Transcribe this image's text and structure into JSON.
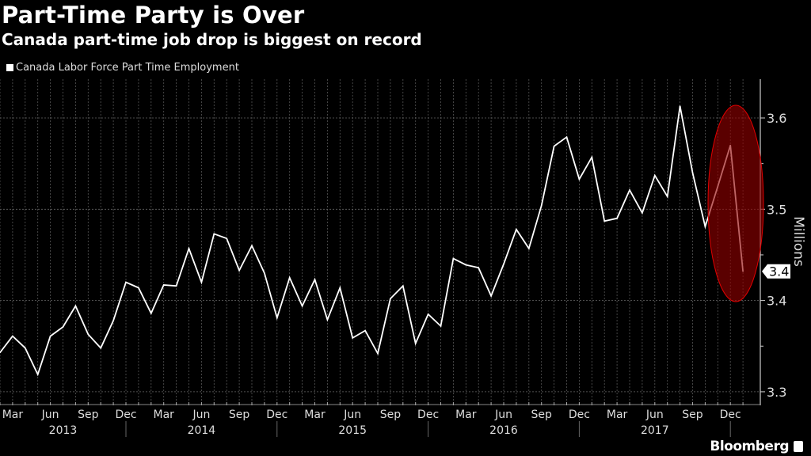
{
  "chart_data": {
    "type": "line",
    "title": "Part-Time Party is Over",
    "subtitle": "Canada part-time job drop is biggest on record",
    "ylabel": "Millions",
    "ylim": [
      3.3,
      3.62
    ],
    "yticks": [
      "3.3",
      "3.4",
      "3.5",
      "3.6"
    ],
    "grid": true,
    "legend_position": "top-left",
    "x_start": "2013-02",
    "x_end": "2018-01",
    "month_tick_labels": [
      "Mar",
      "Jun",
      "Sep",
      "Dec",
      "Mar",
      "Jun",
      "Sep",
      "Dec",
      "Mar",
      "Jun",
      "Sep",
      "Dec",
      "Mar",
      "Jun",
      "Sep",
      "Dec",
      "Mar",
      "Jun",
      "Sep",
      "Dec"
    ],
    "year_labels": [
      "2013",
      "2014",
      "2015",
      "2016",
      "2017"
    ],
    "series": [
      {
        "name": "Canada Labor Force Part Time Employment",
        "color": "#ffffff",
        "values": [
          3.343,
          3.361,
          3.348,
          3.319,
          3.361,
          3.371,
          3.394,
          3.363,
          3.348,
          3.378,
          3.42,
          3.414,
          3.386,
          3.417,
          3.416,
          3.457,
          3.42,
          3.473,
          3.468,
          3.433,
          3.46,
          3.43,
          3.381,
          3.425,
          3.394,
          3.423,
          3.379,
          3.414,
          3.359,
          3.367,
          3.342,
          3.402,
          3.416,
          3.353,
          3.385,
          3.372,
          3.446,
          3.439,
          3.436,
          3.405,
          3.44,
          3.478,
          3.457,
          3.504,
          3.569,
          3.579,
          3.533,
          3.557,
          3.487,
          3.49,
          3.521,
          3.496,
          3.537,
          3.514,
          3.613,
          3.54,
          3.481,
          3.525,
          3.57,
          3.432
        ]
      }
    ],
    "last_value_label": "3.4",
    "highlight": {
      "shape": "ellipse",
      "color": "#c00000",
      "covers": "2017-10 to 2018-01"
    },
    "source": "Bloomberg"
  }
}
